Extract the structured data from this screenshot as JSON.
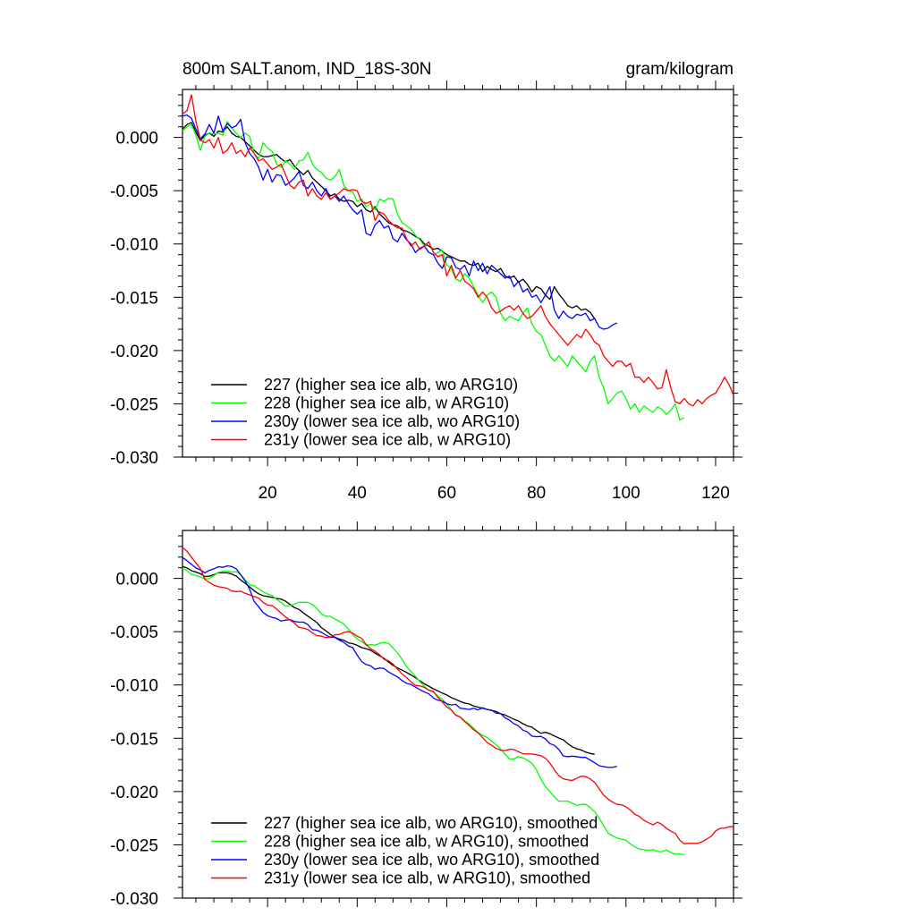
{
  "chart_data": [
    {
      "type": "line",
      "title": "800m SALT.anom, IND_18S-30N",
      "units": "gram/kilogram",
      "xlim": [
        1,
        124
      ],
      "ylim": [
        -0.03,
        0.0045
      ],
      "xticks": [
        20,
        40,
        60,
        80,
        100,
        120
      ],
      "xtick_labels": [
        "20",
        "40",
        "60",
        "80",
        "100",
        "120"
      ],
      "yticks": [
        0.0,
        -0.005,
        -0.01,
        -0.015,
        -0.02,
        -0.025,
        -0.03
      ],
      "ytick_labels": [
        "0.000",
        "-0.005",
        "-0.010",
        "-0.015",
        "-0.020",
        "-0.025",
        "-0.030"
      ],
      "legend_position": "bottom-left",
      "series": [
        {
          "name": "227 (higher sea ice alb, wo ARG10)",
          "color": "#000000",
          "x_start": 1,
          "values": [
            0.0008,
            0.0012,
            0.0014,
            0.0005,
            -0.0003,
            0.0002,
            0.0004,
            0.0001,
            0.0006,
            0.0005,
            0.001,
            0.0004,
            0.0001,
            0.0,
            -0.0004,
            -0.0008,
            -0.0012,
            -0.0016,
            -0.0018,
            -0.0018,
            -0.0017,
            -0.0016,
            -0.002,
            -0.0023,
            -0.0021,
            -0.0027,
            -0.0031,
            -0.0035,
            -0.0031,
            -0.0038,
            -0.0042,
            -0.0046,
            -0.005,
            -0.0055,
            -0.0053,
            -0.0058,
            -0.006,
            -0.0059,
            -0.006,
            -0.0065,
            -0.0062,
            -0.0068,
            -0.007,
            -0.0065,
            -0.0072,
            -0.0076,
            -0.008,
            -0.0082,
            -0.0083,
            -0.0087,
            -0.0088,
            -0.009,
            -0.0093,
            -0.0095,
            -0.01,
            -0.0102,
            -0.0105,
            -0.0104,
            -0.0107,
            -0.011,
            -0.0112,
            -0.0114,
            -0.0116,
            -0.0116,
            -0.0119,
            -0.012,
            -0.0118,
            -0.0126,
            -0.0121,
            -0.0124,
            -0.0126,
            -0.0123,
            -0.013,
            -0.0132,
            -0.013,
            -0.0136,
            -0.0133,
            -0.0138,
            -0.0145,
            -0.014,
            -0.0142,
            -0.0148,
            -0.0152,
            -0.014,
            -0.0147,
            -0.0152,
            -0.0158,
            -0.016,
            -0.0158,
            -0.0162,
            -0.0161,
            -0.0164,
            -0.017
          ]
        },
        {
          "name": "228 (higher sea ice alb, w ARG10)",
          "color": "#00ff00",
          "x_start": 1,
          "values": [
            0.0006,
            0.001,
            0.0012,
            0.0002,
            -0.0012,
            0.0001,
            0.0004,
            0.0003,
            0.0004,
            0.0002,
            0.0015,
            0.0009,
            0.0004,
            0.0,
            0.0004,
            0.0001,
            -0.0015,
            -0.002,
            -0.0005,
            -0.001,
            -0.0013,
            -0.0025,
            -0.0028,
            -0.0022,
            -0.0025,
            -0.003,
            -0.0022,
            -0.0021,
            -0.0014,
            -0.0025,
            -0.003,
            -0.0033,
            -0.0038,
            -0.004,
            -0.0037,
            -0.003,
            -0.0045,
            -0.005,
            -0.0051,
            -0.006,
            -0.0058,
            -0.0065,
            -0.0062,
            -0.0068,
            -0.0058,
            -0.006,
            -0.0057,
            -0.0058,
            -0.0072,
            -0.008,
            -0.0083,
            -0.0086,
            -0.0092,
            -0.0096,
            -0.0102,
            -0.0108,
            -0.011,
            -0.0108,
            -0.0106,
            -0.012,
            -0.0123,
            -0.0133,
            -0.0135,
            -0.0128,
            -0.0132,
            -0.014,
            -0.0148,
            -0.0155,
            -0.0148,
            -0.0145,
            -0.015,
            -0.0165,
            -0.0172,
            -0.0168,
            -0.017,
            -0.0172,
            -0.0165,
            -0.016,
            -0.0175,
            -0.0182,
            -0.0185,
            -0.0195,
            -0.0205,
            -0.021,
            -0.0205,
            -0.021,
            -0.0215,
            -0.0205,
            -0.021,
            -0.0215,
            -0.022,
            -0.021,
            -0.0205,
            -0.0225,
            -0.0235,
            -0.025,
            -0.0245,
            -0.024,
            -0.0238,
            -0.0245,
            -0.0255,
            -0.025,
            -0.0258,
            -0.0252,
            -0.0255,
            -0.0258,
            -0.0253,
            -0.0255,
            -0.026,
            -0.0256,
            -0.025,
            -0.0265,
            -0.0263
          ]
        },
        {
          "name": "230y (lower sea ice alb, wo ARG10)",
          "color": "#0000ff",
          "x_start": 1,
          "values": [
            0.002,
            0.0021,
            0.0018,
            0.0008,
            -0.0001,
            0.0003,
            0.0012,
            0.0004,
            0.002,
            0.0006,
            0.0013,
            0.0009,
            0.0011,
            0.0017,
            -0.0005,
            -0.0015,
            -0.002,
            -0.0028,
            -0.004,
            -0.003,
            -0.0042,
            -0.0035,
            -0.0036,
            -0.0045,
            -0.0042,
            -0.0038,
            -0.0032,
            -0.0045,
            -0.0048,
            -0.0042,
            -0.005,
            -0.0055,
            -0.0048,
            -0.0058,
            -0.0055,
            -0.006,
            -0.0055,
            -0.0062,
            -0.0068,
            -0.0072,
            -0.0068,
            -0.009,
            -0.0092,
            -0.0082,
            -0.0078,
            -0.0085,
            -0.0083,
            -0.0095,
            -0.0098,
            -0.009,
            -0.0096,
            -0.01,
            -0.0108,
            -0.0104,
            -0.0102,
            -0.0108,
            -0.011,
            -0.0118,
            -0.0123,
            -0.0112,
            -0.0113,
            -0.0122,
            -0.0124,
            -0.012,
            -0.013,
            -0.0116,
            -0.0125,
            -0.0118,
            -0.0128,
            -0.012,
            -0.0124,
            -0.0128,
            -0.0132,
            -0.013,
            -0.014,
            -0.0135,
            -0.0145,
            -0.0142,
            -0.015,
            -0.0148,
            -0.0155,
            -0.0148,
            -0.014,
            -0.0162,
            -0.017,
            -0.0163,
            -0.0168,
            -0.017,
            -0.0166,
            -0.0167,
            -0.0165,
            -0.0172,
            -0.017,
            -0.0178,
            -0.018,
            -0.0179,
            -0.0176,
            -0.0174
          ]
        },
        {
          "name": "231y (lower sea ice alb, w ARG10)",
          "color": "#ff0000",
          "x_start": 1,
          "values": [
            0.0022,
            0.0025,
            0.004,
            0.0015,
            -0.0002,
            -0.0005,
            -0.0002,
            -0.001,
            0.0,
            -0.0015,
            -0.0012,
            -0.0005,
            -0.0015,
            -0.0012,
            -0.0018,
            -0.001,
            -0.0015,
            -0.0022,
            -0.002,
            -0.0025,
            -0.003,
            -0.0028,
            -0.0025,
            -0.0035,
            -0.0045,
            -0.0048,
            -0.0042,
            -0.004,
            -0.0055,
            -0.0048,
            -0.0055,
            -0.0058,
            -0.0052,
            -0.0058,
            -0.0055,
            -0.0052,
            -0.0048,
            -0.005,
            -0.0049,
            -0.005,
            -0.006,
            -0.0062,
            -0.006,
            -0.0078,
            -0.007,
            -0.0072,
            -0.0078,
            -0.0082,
            -0.0085,
            -0.0085,
            -0.0095,
            -0.0102,
            -0.0098,
            -0.0105,
            -0.0102,
            -0.0098,
            -0.0108,
            -0.0112,
            -0.011,
            -0.013,
            -0.012,
            -0.0132,
            -0.0125,
            -0.0135,
            -0.0138,
            -0.0142,
            -0.015,
            -0.0145,
            -0.015,
            -0.016,
            -0.0165,
            -0.0163,
            -0.016,
            -0.0158,
            -0.0162,
            -0.0158,
            -0.0165,
            -0.017,
            -0.0168,
            -0.0163,
            -0.0158,
            -0.0168,
            -0.0175,
            -0.018,
            -0.0185,
            -0.019,
            -0.0195,
            -0.019,
            -0.0185,
            -0.0188,
            -0.018,
            -0.0185,
            -0.0192,
            -0.0195,
            -0.0205,
            -0.021,
            -0.0215,
            -0.021,
            -0.021,
            -0.0215,
            -0.0212,
            -0.0225,
            -0.0225,
            -0.023,
            -0.0225,
            -0.023,
            -0.0236,
            -0.0235,
            -0.0218,
            -0.0235,
            -0.0248,
            -0.025,
            -0.0245,
            -0.025,
            -0.0252,
            -0.0246,
            -0.025,
            -0.0245,
            -0.0242,
            -0.024,
            -0.0233,
            -0.0225,
            -0.0232,
            -0.0242
          ]
        }
      ]
    },
    {
      "type": "line",
      "title": "",
      "xlim": [
        1,
        124
      ],
      "ylim": [
        -0.03,
        0.0045
      ],
      "xticks": [
        20,
        40,
        60,
        80,
        100,
        120
      ],
      "yticks": [
        0.0,
        -0.005,
        -0.01,
        -0.015,
        -0.02,
        -0.025,
        -0.03
      ],
      "ytick_labels": [
        "0.000",
        "-0.005",
        "-0.010",
        "-0.015",
        "-0.020",
        "-0.025",
        "-0.030"
      ],
      "legend_position": "bottom-left",
      "smoothing_window": 5,
      "series": [
        {
          "name": "227 (higher sea ice alb, wo ARG10), smoothed",
          "color": "#000000",
          "source": 0
        },
        {
          "name": "228 (higher sea ice alb, w ARG10), smoothed",
          "color": "#00ff00",
          "source": 1
        },
        {
          "name": "230y (lower sea ice alb, wo ARG10), smoothed",
          "color": "#0000ff",
          "source": 2
        },
        {
          "name": "231y (lower sea ice alb, w ARG10), smoothed",
          "color": "#ff0000",
          "source": 3
        }
      ]
    }
  ]
}
